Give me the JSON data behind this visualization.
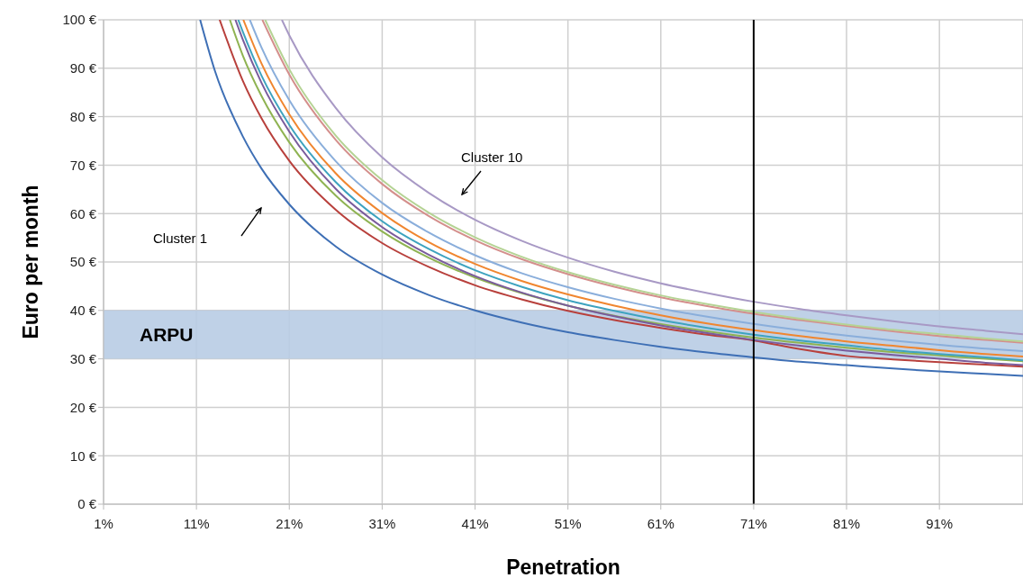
{
  "chart_data": {
    "type": "line",
    "xlabel": "Penetration",
    "ylabel": "Euro per month",
    "xlim": [
      1,
      100
    ],
    "ylim": [
      0,
      100
    ],
    "xticks": [
      {
        "value": 1,
        "label": "1%"
      },
      {
        "value": 11,
        "label": "11%"
      },
      {
        "value": 21,
        "label": "21%"
      },
      {
        "value": 31,
        "label": "31%"
      },
      {
        "value": 41,
        "label": "41%"
      },
      {
        "value": 51,
        "label": "51%"
      },
      {
        "value": 61,
        "label": "61%"
      },
      {
        "value": 71,
        "label": "71%"
      },
      {
        "value": 81,
        "label": "81%"
      },
      {
        "value": 91,
        "label": "91%"
      }
    ],
    "yticks": [
      {
        "value": 0,
        "label": "0 €"
      },
      {
        "value": 10,
        "label": "10 €"
      },
      {
        "value": 20,
        "label": "20 €"
      },
      {
        "value": 30,
        "label": "30 €"
      },
      {
        "value": 40,
        "label": "40 €"
      },
      {
        "value": 50,
        "label": "50 €"
      },
      {
        "value": 60,
        "label": "60 €"
      },
      {
        "value": 70,
        "label": "70 €"
      },
      {
        "value": 80,
        "label": "80 €"
      },
      {
        "value": 90,
        "label": "90 €"
      },
      {
        "value": 100,
        "label": "100 €"
      }
    ],
    "grid": true,
    "marker": "none",
    "line_style": "solid",
    "bands": [
      {
        "axis": "y",
        "from": 30,
        "to": 40,
        "label": "ARPU",
        "color": "#b8cce4"
      }
    ],
    "ref_lines": [
      {
        "axis": "x",
        "value": 71,
        "color": "#000000"
      }
    ],
    "annotations": [
      "Cluster 1",
      "Cluster 10"
    ],
    "series": [
      {
        "color": "#3e6fb5",
        "x": [
          11.4,
          13,
          16,
          18,
          21,
          26,
          31,
          36,
          41,
          46,
          51,
          56,
          61,
          66,
          71,
          76,
          81,
          86,
          91,
          96,
          100
        ],
        "values": [
          100,
          89.4,
          75.9,
          69.3,
          61.9,
          53.2,
          47.4,
          43.2,
          40.0,
          37.5,
          35.5,
          33.9,
          32.5,
          31.3,
          30.3,
          29.4,
          28.7,
          28.0,
          27.4,
          26.9,
          26.5
        ]
      },
      {
        "color": "#b8403c",
        "x": [
          13.5,
          16,
          18,
          21,
          26,
          31,
          36,
          41,
          46,
          51,
          56,
          61,
          66,
          71,
          76,
          81,
          86,
          91,
          96,
          100
        ],
        "values": [
          100,
          87.4,
          79.7,
          70.9,
          60.8,
          53.9,
          49.0,
          45.2,
          42.3,
          39.9,
          38.0,
          36.4,
          35.0,
          33.8,
          32.0,
          30.6,
          29.9,
          29.3,
          28.8,
          28.4
        ]
      },
      {
        "color": "#8fb352",
        "x": [
          14.6,
          16,
          18,
          21,
          26,
          31,
          36,
          41,
          46,
          51,
          56,
          61,
          66,
          71,
          76,
          81,
          86,
          91,
          96,
          100
        ],
        "values": [
          100,
          92.6,
          84.3,
          74.7,
          63.7,
          56.3,
          50.9,
          46.8,
          43.6,
          41.0,
          38.9,
          37.2,
          35.7,
          34.4,
          33.3,
          32.3,
          31.4,
          30.7,
          30.0,
          29.5
        ]
      },
      {
        "color": "#7a5c9c",
        "x": [
          15.2,
          16,
          18,
          21,
          26,
          31,
          36,
          41,
          46,
          51,
          56,
          61,
          66,
          71,
          76,
          81,
          86,
          91,
          96,
          100
        ],
        "values": [
          100,
          95.9,
          87.0,
          76.9,
          65.1,
          57.2,
          51.5,
          47.1,
          43.7,
          41.0,
          38.8,
          36.9,
          35.3,
          33.9,
          32.7,
          31.7,
          30.8,
          30.0,
          29.2,
          28.7
        ]
      },
      {
        "color": "#3ea3bf",
        "x": [
          15.5,
          16,
          18,
          21,
          26,
          31,
          36,
          41,
          46,
          51,
          56,
          61,
          66,
          71,
          76,
          81,
          86,
          91,
          96,
          100
        ],
        "values": [
          100,
          97.5,
          88.5,
          78.3,
          66.5,
          58.4,
          52.7,
          48.3,
          44.9,
          42.1,
          39.9,
          38.0,
          36.4,
          35.0,
          33.8,
          32.8,
          31.8,
          31.0,
          30.3,
          29.7
        ]
      },
      {
        "color": "#f0862f",
        "x": [
          16.05,
          18,
          21,
          26,
          31,
          36,
          41,
          46,
          51,
          56,
          61,
          66,
          71,
          76,
          81,
          86,
          91,
          96,
          100
        ],
        "values": [
          100,
          91.0,
          80.5,
          68.3,
          60.1,
          54.1,
          49.6,
          46.1,
          43.3,
          41.0,
          39.0,
          37.3,
          35.9,
          34.7,
          33.6,
          32.7,
          31.8,
          31.0,
          30.5
        ]
      },
      {
        "color": "#8aaedb",
        "x": [
          16.75,
          18,
          21,
          26,
          31,
          36,
          41,
          46,
          51,
          56,
          61,
          66,
          71,
          76,
          81,
          86,
          91,
          96,
          100
        ],
        "values": [
          100,
          94.3,
          83.4,
          70.8,
          62.2,
          56.1,
          51.4,
          47.7,
          44.8,
          42.4,
          40.4,
          38.7,
          37.2,
          35.9,
          34.8,
          33.8,
          32.9,
          32.1,
          31.6
        ]
      },
      {
        "color": "#d48f8c",
        "x": [
          18.1,
          21,
          26,
          31,
          36,
          41,
          46,
          51,
          56,
          61,
          66,
          71,
          76,
          81,
          86,
          91,
          96,
          100
        ],
        "values": [
          100,
          88.7,
          75.2,
          66.1,
          59.5,
          54.5,
          50.6,
          47.5,
          44.9,
          42.7,
          40.9,
          39.3,
          38.0,
          36.8,
          35.7,
          34.7,
          33.9,
          33.3
        ]
      },
      {
        "color": "#b5d394",
        "x": [
          18.4,
          21,
          26,
          31,
          36,
          41,
          46,
          51,
          56,
          61,
          66,
          71,
          76,
          81,
          86,
          91,
          96,
          100
        ],
        "values": [
          100,
          89.8,
          76.1,
          66.9,
          60.2,
          55.1,
          51.1,
          47.9,
          45.3,
          43.1,
          41.3,
          39.7,
          38.3,
          37.1,
          36.0,
          35.1,
          34.2,
          33.6
        ]
      },
      {
        "color": "#a899c5",
        "x": [
          20.2,
          21,
          26,
          31,
          36,
          41,
          46,
          51,
          56,
          61,
          66,
          71,
          76,
          81,
          86,
          91,
          96,
          100
        ],
        "values": [
          100,
          96.8,
          81.8,
          71.6,
          64.3,
          58.7,
          54.4,
          50.9,
          48.0,
          45.6,
          43.6,
          41.8,
          40.3,
          39.0,
          37.8,
          36.7,
          35.8,
          35.1
        ]
      }
    ]
  }
}
